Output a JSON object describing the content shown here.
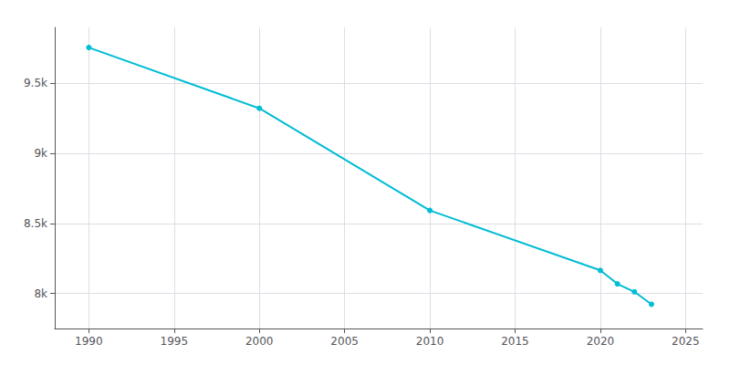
{
  "chart_data": {
    "type": "line",
    "x": [
      1990,
      2000,
      2010,
      2020,
      2021,
      2022,
      2023
    ],
    "values": [
      9756,
      9322,
      8593,
      8165,
      8069,
      8012,
      7923
    ],
    "color": "#00bcd4",
    "marker": "circle",
    "xlim": [
      1988,
      2026
    ],
    "ylim": [
      7750,
      9900
    ],
    "xticks": [
      1990,
      1995,
      2000,
      2005,
      2010,
      2015,
      2020,
      2025
    ],
    "yticks": [
      {
        "value": 8000,
        "label": "8k"
      },
      {
        "value": 8500,
        "label": "8.5k"
      },
      {
        "value": 9000,
        "label": "9k"
      },
      {
        "value": 9500,
        "label": "9.5k"
      }
    ],
    "grid": true
  }
}
